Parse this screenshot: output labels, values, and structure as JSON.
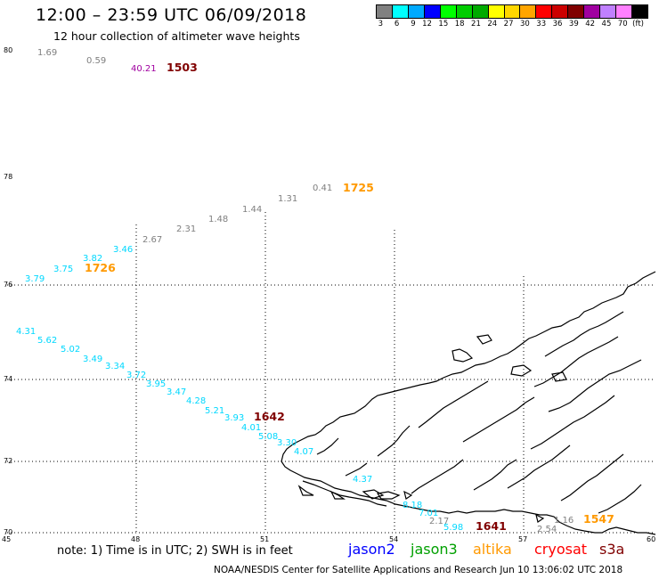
{
  "title": "12:00 – 23:59 UTC 06/09/2018",
  "subtitle": "12 hour collection of altimeter wave heights",
  "scale": {
    "colors": [
      "#808080",
      "#00ffff",
      "#00aaff",
      "#0000ff",
      "#00ff00",
      "#00cc00",
      "#00aa00",
      "#ffff00",
      "#ffd700",
      "#ffa500",
      "#ff0000",
      "#cc0000",
      "#800000",
      "#a000a0",
      "#c080ff",
      "#ff80ff",
      "#000000"
    ],
    "labels": [
      "3",
      "6",
      "9",
      "12",
      "15",
      "18",
      "21",
      "24",
      "27",
      "30",
      "33",
      "36",
      "39",
      "42",
      "45",
      "70",
      "(ft)"
    ]
  },
  "axes": {
    "lat_labels": [
      "80",
      "78",
      "76",
      "74",
      "72",
      "70"
    ],
    "lon_labels": [
      "45",
      "48",
      "51",
      "54",
      "57",
      "60"
    ]
  },
  "colors": {
    "gray": "#7f7f7f",
    "cyan": "#00d8ff",
    "purple": "#a000a0",
    "maroon": "#800000",
    "orange": "#ff9900",
    "jason2": "#0000ff",
    "jason3": "#00a000",
    "altika": "#ff9900",
    "cryosat": "#ff0000"
  },
  "track_labels": [
    {
      "text": "1.69",
      "color": "gray"
    },
    {
      "text": "0.59",
      "color": "gray"
    },
    {
      "text": "40.21",
      "color": "purple"
    },
    {
      "text": "1503",
      "color": "maroon",
      "bold": true
    },
    {
      "text": "0.41",
      "color": "gray"
    },
    {
      "text": "1725",
      "color": "orange",
      "bold": true
    },
    {
      "text": "1.31",
      "color": "gray"
    },
    {
      "text": "1.44",
      "color": "gray"
    },
    {
      "text": "1.48",
      "color": "gray"
    },
    {
      "text": "2.31",
      "color": "gray"
    },
    {
      "text": "2.67",
      "color": "gray"
    },
    {
      "text": "3.46",
      "color": "cyan"
    },
    {
      "text": "3.82",
      "color": "cyan"
    },
    {
      "text": "3.75",
      "color": "cyan"
    },
    {
      "text": "1726",
      "color": "orange",
      "bold": true
    },
    {
      "text": "3.79",
      "color": "cyan"
    },
    {
      "text": "4.31",
      "color": "cyan"
    },
    {
      "text": "5.62",
      "color": "cyan"
    },
    {
      "text": "5.02",
      "color": "cyan"
    },
    {
      "text": "3.49",
      "color": "cyan"
    },
    {
      "text": "3.34",
      "color": "cyan"
    },
    {
      "text": "3.72",
      "color": "cyan"
    },
    {
      "text": "3.95",
      "color": "cyan"
    },
    {
      "text": "3.47",
      "color": "cyan"
    },
    {
      "text": "4.28",
      "color": "cyan"
    },
    {
      "text": "5.21",
      "color": "cyan"
    },
    {
      "text": "3.93",
      "color": "cyan"
    },
    {
      "text": "1642",
      "color": "maroon",
      "bold": true
    },
    {
      "text": "4.01",
      "color": "cyan"
    },
    {
      "text": "5.08",
      "color": "cyan"
    },
    {
      "text": "3.30",
      "color": "cyan"
    },
    {
      "text": "4.07",
      "color": "cyan"
    },
    {
      "text": "4.37",
      "color": "cyan"
    },
    {
      "text": "8.18",
      "color": "cyan"
    },
    {
      "text": "7.01",
      "color": "cyan"
    },
    {
      "text": "2.17",
      "color": "gray"
    },
    {
      "text": "5.98",
      "color": "cyan"
    },
    {
      "text": "1641",
      "color": "maroon",
      "bold": true
    },
    {
      "text": "2.54",
      "color": "gray"
    },
    {
      "text": "1.16",
      "color": "gray"
    },
    {
      "text": "1547",
      "color": "orange",
      "bold": true
    }
  ],
  "footer": {
    "note": "note:  1) Time is in UTC;  2) SWH is in feet",
    "jason2": "jason2",
    "jason3": "jason3",
    "altika": "altika",
    "cryosat": "cryosat",
    "s3a": "s3a",
    "credit": "NOAA/NESDIS Center for Satellite Applications and Research   Jun 10 13:06:02 UTC 2018"
  }
}
